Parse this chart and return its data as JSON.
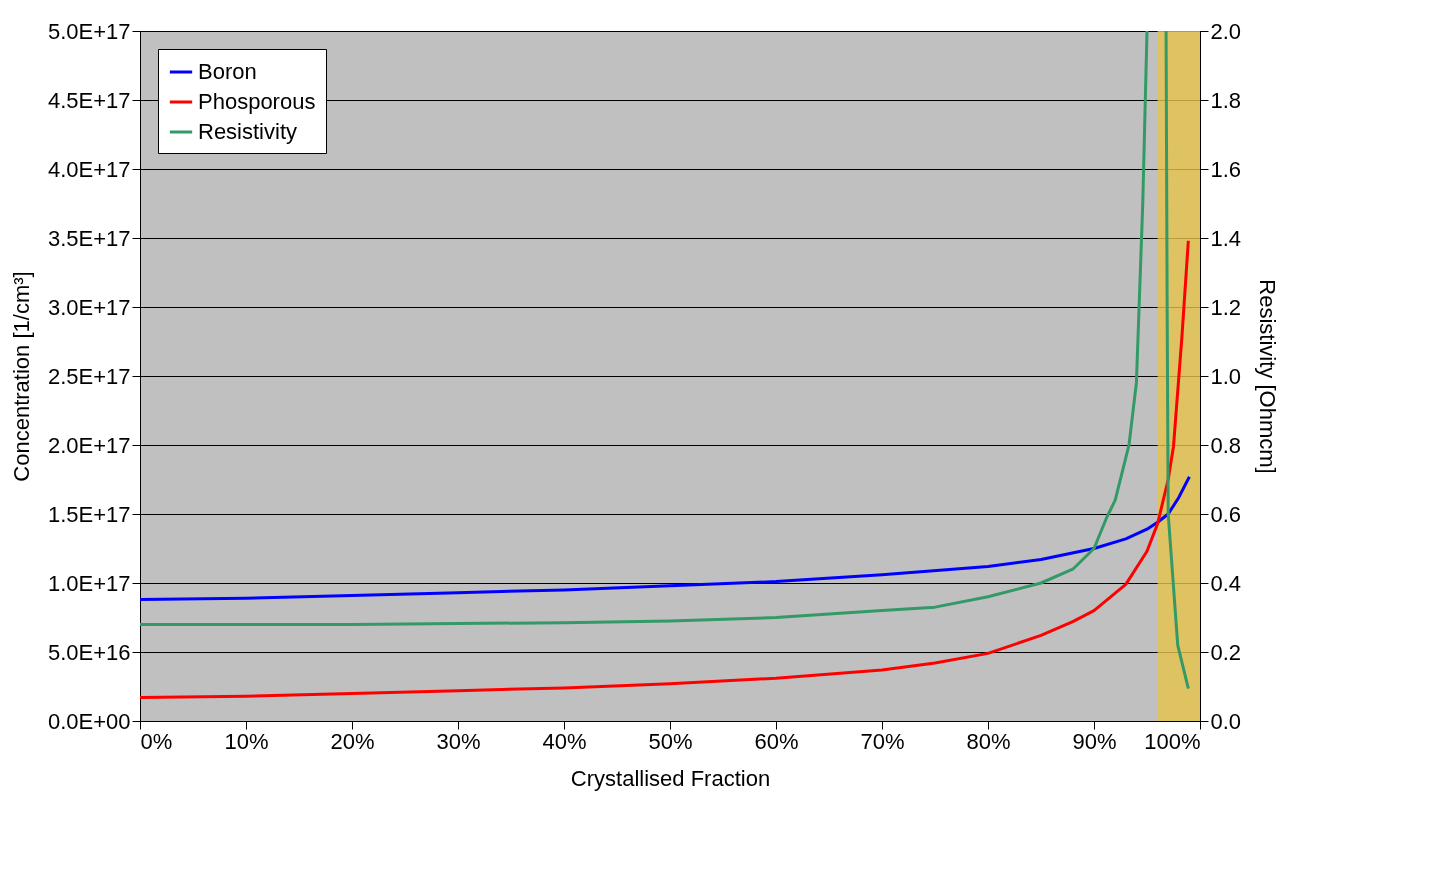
{
  "chart_data": {
    "type": "line",
    "xlabel": "Crystallised Fraction",
    "ylabel": "Concentration [1/cm³]",
    "y2label": "Resistivity [Ohmcm]",
    "xlim": [
      0,
      100
    ],
    "xticks": [
      {
        "value": 0,
        "label": "0%"
      },
      {
        "value": 10,
        "label": "10%"
      },
      {
        "value": 20,
        "label": "20%"
      },
      {
        "value": 30,
        "label": "30%"
      },
      {
        "value": 40,
        "label": "40%"
      },
      {
        "value": 50,
        "label": "50%"
      },
      {
        "value": 60,
        "label": "60%"
      },
      {
        "value": 70,
        "label": "70%"
      },
      {
        "value": 80,
        "label": "80%"
      },
      {
        "value": 90,
        "label": "90%"
      },
      {
        "value": 100,
        "label": "100%"
      }
    ],
    "ylim": [
      0,
      5e+17
    ],
    "yticks": [
      {
        "value": 0,
        "label": "0.0E+00"
      },
      {
        "value": 5e+16,
        "label": "5.0E+16"
      },
      {
        "value": 1e+17,
        "label": "1.0E+17"
      },
      {
        "value": 1.5e+17,
        "label": "1.5E+17"
      },
      {
        "value": 2e+17,
        "label": "2.0E+17"
      },
      {
        "value": 2.5e+17,
        "label": "2.5E+17"
      },
      {
        "value": 3e+17,
        "label": "3.0E+17"
      },
      {
        "value": 3.5e+17,
        "label": "3.5E+17"
      },
      {
        "value": 4e+17,
        "label": "4.0E+17"
      },
      {
        "value": 4.5e+17,
        "label": "4.5E+17"
      },
      {
        "value": 5e+17,
        "label": "5.0E+17"
      }
    ],
    "y2lim": [
      0,
      2
    ],
    "y2ticks": [
      {
        "value": 0,
        "label": "0.0"
      },
      {
        "value": 0.2,
        "label": "0.2"
      },
      {
        "value": 0.4,
        "label": "0.4"
      },
      {
        "value": 0.6,
        "label": "0.6"
      },
      {
        "value": 0.8,
        "label": "0.8"
      },
      {
        "value": 1,
        "label": "1.0"
      },
      {
        "value": 1.2,
        "label": "1.2"
      },
      {
        "value": 1.4,
        "label": "1.4"
      },
      {
        "value": 1.6,
        "label": "1.6"
      },
      {
        "value": 1.8,
        "label": "1.8"
      },
      {
        "value": 2,
        "label": "2.0"
      }
    ],
    "grid": "y",
    "legend": "top left",
    "marker": "none",
    "line_style": "solid",
    "bands": [
      {
        "axis": "x",
        "from": 96,
        "to": 100,
        "color": "#e6c34a"
      }
    ],
    "series": [
      {
        "name": "Boron",
        "color": "#0000ff",
        "x": [
          0,
          10,
          20,
          30,
          40,
          50,
          60,
          70,
          80,
          85,
          90,
          93,
          95,
          96,
          97,
          98,
          99
        ],
        "values": [
          8.8e+16,
          8.9e+16,
          9.1e+16,
          9.3e+16,
          9.5e+16,
          9.8e+16,
          1.01e+17,
          1.06e+17,
          1.12e+17,
          1.17e+17,
          1.25e+17,
          1.32e+17,
          1.39e+17,
          1.44e+17,
          1.5e+17,
          1.62e+17,
          1.77e+17
        ]
      },
      {
        "name": "Phosporous",
        "color": "#ff0000",
        "x": [
          0,
          10,
          20,
          30,
          40,
          50,
          60,
          70,
          75,
          80,
          85,
          88,
          90,
          93,
          95,
          96,
          97,
          97.5,
          98.3,
          98.9
        ],
        "values": [
          1.7e+16,
          1.8e+16,
          2e+16,
          2.2e+16,
          2.4e+16,
          2.7e+16,
          3.1e+16,
          3.7e+16,
          4.2e+16,
          4.9e+16,
          6.2e+16,
          7.2e+16,
          8e+16,
          9.9e+16,
          1.23e+17,
          1.43e+17,
          1.75e+17,
          1.99e+17,
          2.79e+17,
          3.48e+17
        ]
      },
      {
        "name": "Resistivity",
        "color": "#339966",
        "axis": "y2",
        "x": [
          0,
          20,
          40,
          50,
          60,
          70,
          75,
          80,
          85,
          88,
          90,
          91.2,
          92,
          93.3,
          94,
          94.6,
          95,
          95.9,
          96.8,
          96.9,
          97,
          97.9,
          98.9
        ],
        "values": [
          0.28,
          0.28,
          0.285,
          0.29,
          0.3,
          0.32,
          0.33,
          0.36,
          0.4,
          0.44,
          0.5,
          0.59,
          0.64,
          0.8,
          0.98,
          1.5,
          2.0,
          null,
          2.0,
          1.2,
          0.6,
          0.22,
          0.094
        ]
      }
    ]
  }
}
